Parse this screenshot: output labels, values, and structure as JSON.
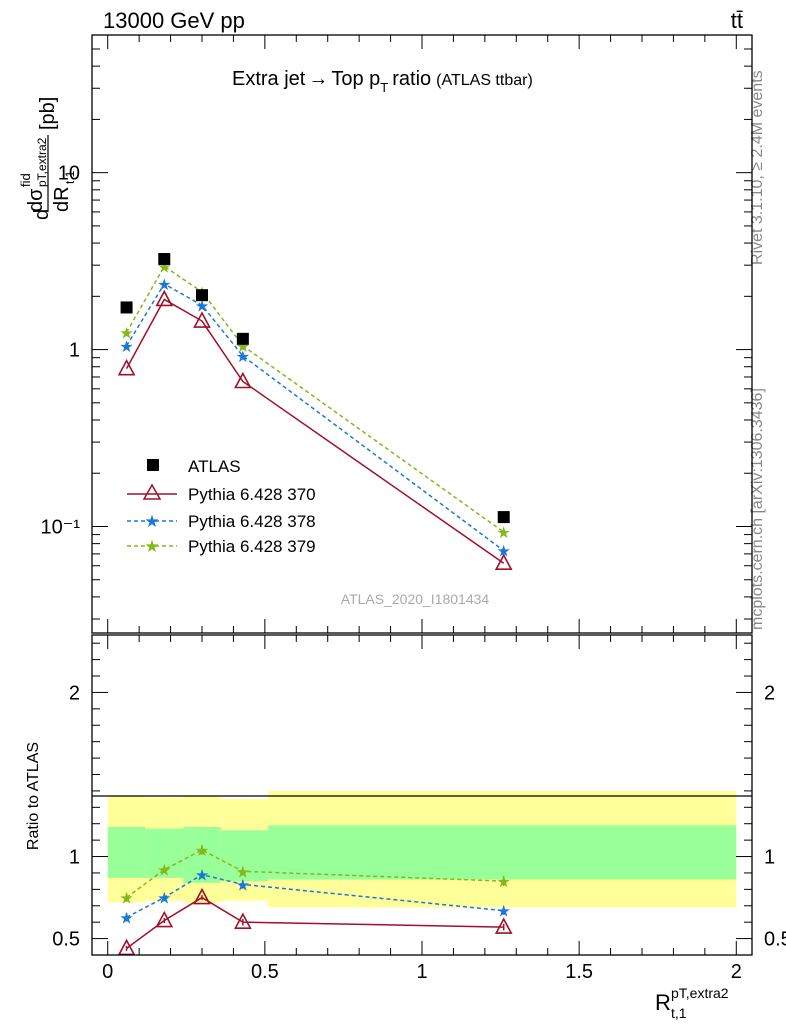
{
  "header": {
    "left": "13000 GeV pp",
    "right": "tt̄"
  },
  "side_text": {
    "top": "Rivet 3.1.10, ≥ 2.4M events",
    "bottom": "mcplots.cern.ch [arXiv:1306.3436]"
  },
  "watermark": "ATLAS_2020_I1801434",
  "chart_data": {
    "type": "scatter",
    "title": "Extra jet → Top pT ratio",
    "title_suffix": "(ATLAS ttbar)",
    "ylabel_main": "dσ^fid / dR^(pT,extra2)_(t,1) [pb]",
    "ylabel_ratio": "Ratio to ATLAS",
    "xlabel": "R^(pT,extra2)_(t,1)",
    "xlim": [
      -0.05,
      2.05
    ],
    "main_ylim": [
      0.025,
      60
    ],
    "main_yscale": "log",
    "main_ytick_labels": [
      "10⁻¹",
      "1",
      "10"
    ],
    "ratio_ylim": [
      0.4,
      2.35
    ],
    "ratio_yticks": [
      0.5,
      1,
      2
    ],
    "xticks": [
      0,
      0.5,
      1,
      1.5,
      2
    ],
    "x": [
      0.06,
      0.18,
      0.3,
      0.43,
      1.26
    ],
    "bins": [
      [
        0,
        0.12
      ],
      [
        0.12,
        0.24
      ],
      [
        0.24,
        0.36
      ],
      [
        0.36,
        0.51
      ],
      [
        0.51,
        2.0
      ]
    ],
    "data": {
      "name": "ATLAS",
      "values": [
        1.73,
        3.25,
        2.03,
        1.15,
        0.113
      ]
    },
    "series": [
      {
        "name": "Pythia 6.428 370",
        "color": "#a0102a",
        "values": [
          0.78,
          1.92,
          1.45,
          0.66,
          0.062
        ],
        "ratio": [
          0.44,
          0.61,
          0.75,
          0.6,
          0.57
        ],
        "ratio_err": [
          0.015,
          0.015,
          0.015,
          0.02,
          0.02
        ]
      },
      {
        "name": "Pythia 6.428 378",
        "color": "#1a78d8",
        "values": [
          1.05,
          2.35,
          1.78,
          0.92,
          0.073
        ],
        "ratio": [
          0.63,
          0.75,
          0.89,
          0.83,
          0.67
        ],
        "ratio_err": [
          0.025,
          0.015,
          0.02,
          0.025,
          0.025
        ]
      },
      {
        "name": "Pythia 6.428 379",
        "color": "#86b81c",
        "values": [
          1.25,
          2.95,
          2.12,
          1.05,
          0.093
        ],
        "ratio": [
          0.75,
          0.92,
          1.04,
          0.91,
          0.85
        ],
        "ratio_err": [
          0.025,
          0.02,
          0.03,
          0.025,
          0.03
        ]
      }
    ],
    "ratio_bands": {
      "inner_color": "#99ff99",
      "outer_color": "#ffff99",
      "inner": [
        [
          0.87,
          1.18
        ],
        [
          0.87,
          1.17
        ],
        [
          0.84,
          1.18
        ],
        [
          0.85,
          1.16
        ],
        [
          0.86,
          1.19
        ]
      ],
      "outer": [
        [
          0.72,
          1.37
        ],
        [
          0.73,
          1.36
        ],
        [
          0.72,
          1.37
        ],
        [
          0.73,
          1.35
        ],
        [
          0.69,
          1.4
        ]
      ]
    }
  }
}
